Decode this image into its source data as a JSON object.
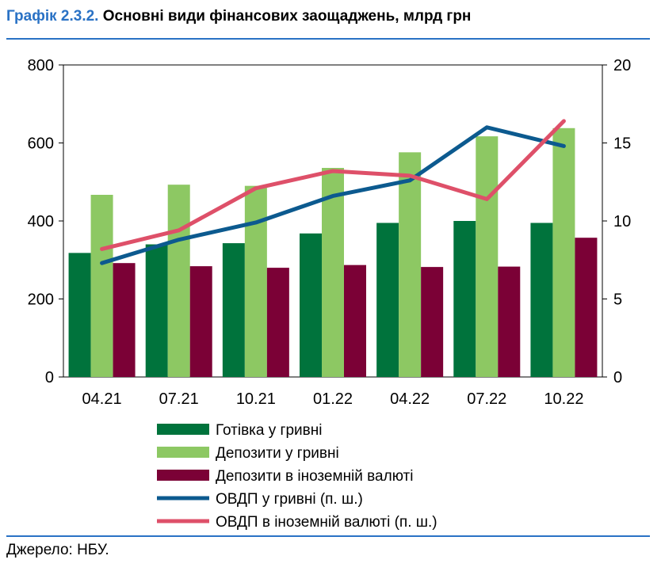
{
  "header": {
    "number": "Графік 2.3.2.",
    "text": "Основні види фінансових заощаджень, млрд грн"
  },
  "source": "Джерело: НБУ.",
  "chart_data": {
    "type": "bar",
    "categories": [
      "04.21",
      "07.21",
      "10.21",
      "01.22",
      "04.22",
      "07.22",
      "10.22"
    ],
    "y_left": {
      "ylim": [
        0,
        800
      ],
      "ticks": [
        "0",
        "200",
        "400",
        "600",
        "800"
      ]
    },
    "y_right": {
      "ylim": [
        0,
        20
      ],
      "ticks": [
        "0",
        "5",
        "10",
        "15",
        "20"
      ]
    },
    "grid": false,
    "legend_position": "bottom",
    "series": [
      {
        "name": "Готівка у гривні",
        "kind": "bar",
        "axis": "left",
        "color": "#00733c",
        "values": [
          318,
          340,
          343,
          368,
          395,
          400,
          395
        ]
      },
      {
        "name": "Депозити у гривні",
        "kind": "bar",
        "axis": "left",
        "color": "#8dc863",
        "values": [
          467,
          493,
          490,
          536,
          576,
          617,
          638
        ]
      },
      {
        "name": "Депозити в іноземній валюті",
        "kind": "bar",
        "axis": "left",
        "color": "#7b0136",
        "values": [
          292,
          284,
          280,
          287,
          282,
          283,
          357
        ]
      },
      {
        "name": "ОВДП у гривні (п. ш.)",
        "kind": "line",
        "axis": "right",
        "color": "#0c5a8f",
        "values": [
          7.3,
          8.8,
          9.9,
          11.6,
          12.6,
          16.0,
          14.8
        ]
      },
      {
        "name": "ОВДП в іноземній валюті (п. ш.)",
        "kind": "line",
        "axis": "right",
        "color": "#de5069",
        "values": [
          8.2,
          9.4,
          12.1,
          13.2,
          12.9,
          11.4,
          16.4
        ]
      }
    ]
  }
}
